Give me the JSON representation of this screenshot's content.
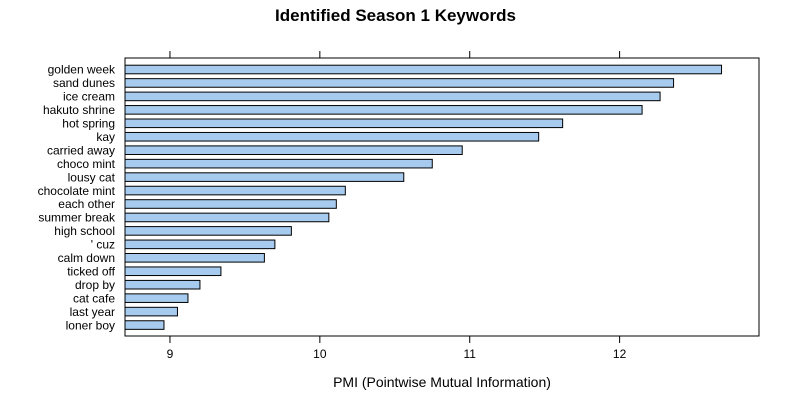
{
  "chart_data": {
    "type": "bar",
    "orientation": "horizontal",
    "title": "Identified Season 1 Keywords",
    "xlabel": "PMI (Pointwise Mutual Information)",
    "ylabel": "",
    "xlim": [
      8.7,
      12.93
    ],
    "xticks": [
      9,
      10,
      11,
      12
    ],
    "xtick_labels": [
      "9",
      "10",
      "11",
      "12"
    ],
    "grid": false,
    "legend": "none",
    "bar_color": "#a6cbee",
    "categories": [
      "golden week",
      "sand dunes",
      "ice cream",
      "hakuto shrine",
      "hot spring",
      "kay",
      "carried away",
      "choco mint",
      "lousy cat",
      "chocolate mint",
      "each other",
      "summer break",
      "high school",
      "' cuz",
      "calm down",
      "ticked off",
      "drop by",
      "cat cafe",
      "last year",
      "loner boy"
    ],
    "values": [
      12.68,
      12.36,
      12.27,
      12.15,
      11.62,
      11.46,
      10.95,
      10.75,
      10.56,
      10.17,
      10.11,
      10.06,
      9.81,
      9.7,
      9.63,
      9.34,
      9.2,
      9.12,
      9.05,
      8.96
    ]
  }
}
